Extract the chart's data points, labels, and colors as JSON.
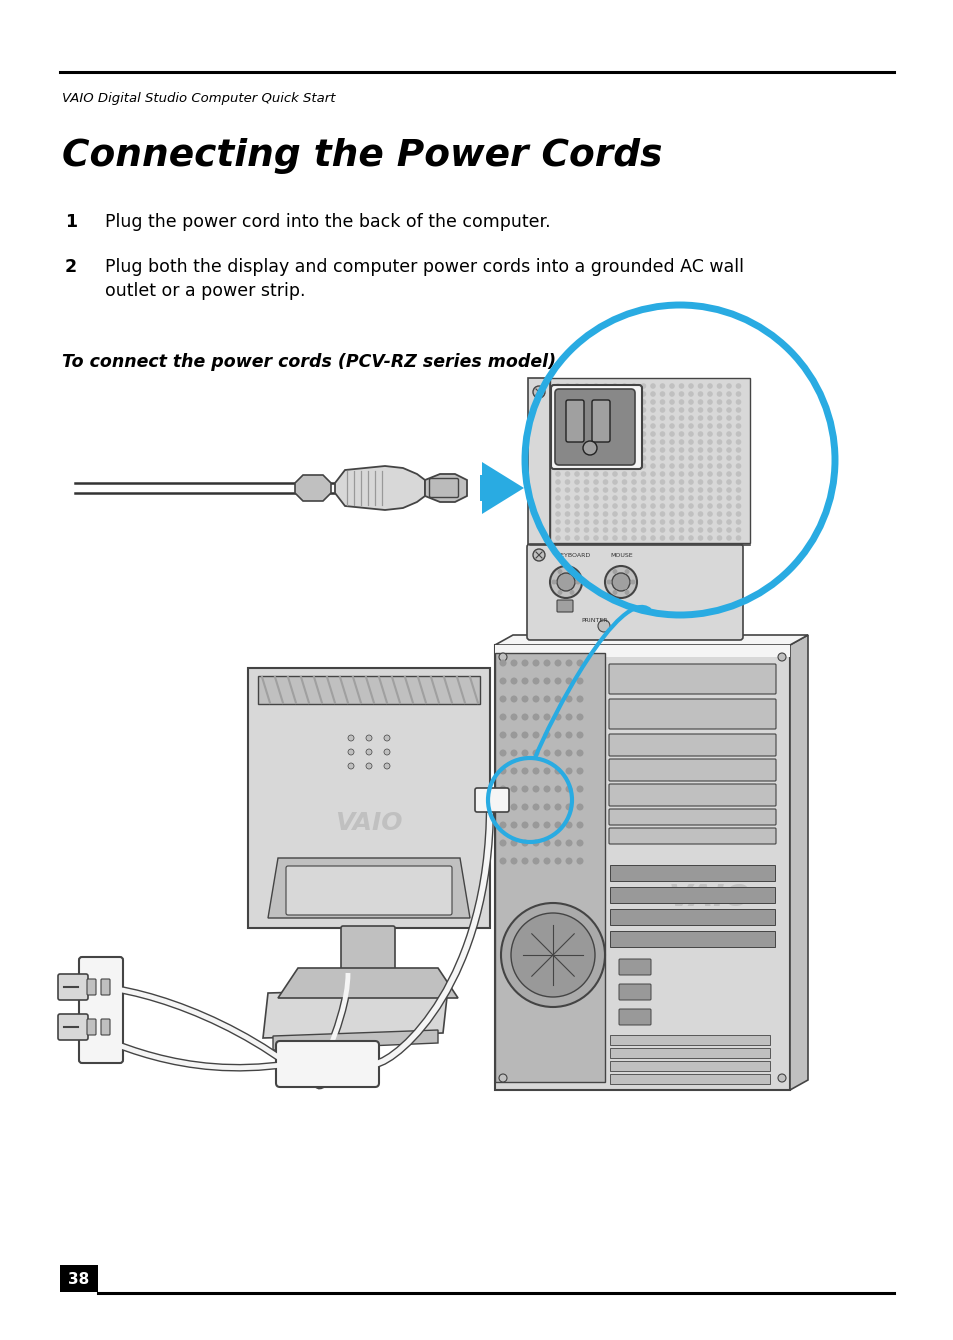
{
  "header_text": "VAIO Digital Studio Computer Quick Start",
  "title": "Connecting the Power Cords",
  "step1_num": "1",
  "step1": "Plug the power cord into the back of the computer.",
  "step2_num": "2",
  "step2_line1": "Plug both the display and computer power cords into a grounded AC wall",
  "step2_line2": "outlet or a power strip.",
  "subtitle": "To connect the power cords (PCV-RZ series model)",
  "page_number": "38",
  "bg_color": "#ffffff",
  "text_color": "#000000",
  "line_color": "#000000",
  "page_box_color": "#000000",
  "page_text_color": "#ffffff",
  "arrow_color": "#29ABE2",
  "circle_color": "#29ABE2",
  "draw_color": "#444444",
  "fill_light": "#d8d8d8",
  "fill_mid": "#c0c0c0",
  "fill_dark": "#a0a0a0",
  "fill_white": "#f5f5f5",
  "cord_color": "#e8e8e8",
  "cord_edge": "#888888"
}
